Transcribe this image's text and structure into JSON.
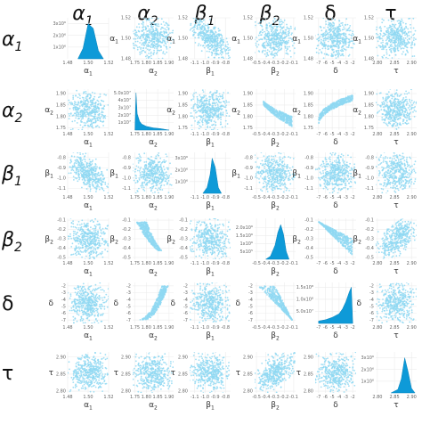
{
  "chart_data": {
    "type": "scatter-matrix",
    "variables": [
      {
        "key": "a1",
        "base": "α",
        "sub": "1",
        "plain": "α₁",
        "range": [
          1.48,
          1.52
        ],
        "ticks": [
          {
            "v": 1.48,
            "l": "1.48"
          },
          {
            "v": 1.5,
            "l": "1.50"
          },
          {
            "v": 1.52,
            "l": "1.52"
          }
        ]
      },
      {
        "key": "a2",
        "base": "α",
        "sub": "2",
        "plain": "α₂",
        "range": [
          1.74,
          1.92
        ],
        "ticks": [
          {
            "v": 1.75,
            "l": "1.75"
          },
          {
            "v": 1.8,
            "l": "1.80"
          },
          {
            "v": 1.85,
            "l": "1.85"
          },
          {
            "v": 1.9,
            "l": "1.90"
          }
        ]
      },
      {
        "key": "b1",
        "base": "β",
        "sub": "1",
        "plain": "β₁",
        "range": [
          -1.15,
          -0.75
        ],
        "ticks": [
          {
            "v": -1.1,
            "l": "-1.1"
          },
          {
            "v": -1.0,
            "l": "-1.0"
          },
          {
            "v": -0.9,
            "l": "-0.9"
          },
          {
            "v": -0.8,
            "l": "-0.8"
          }
        ]
      },
      {
        "key": "b2",
        "base": "β",
        "sub": "2",
        "plain": "β₂",
        "range": [
          -0.52,
          -0.08
        ],
        "ticks": [
          {
            "v": -0.5,
            "l": "-0.5"
          },
          {
            "v": -0.4,
            "l": "-0.4"
          },
          {
            "v": -0.3,
            "l": "-0.3"
          },
          {
            "v": -0.2,
            "l": "-0.2"
          },
          {
            "v": -0.1,
            "l": "-0.1"
          }
        ]
      },
      {
        "key": "d",
        "base": "δ",
        "sub": "",
        "plain": "δ",
        "range": [
          -7.5,
          -1.5
        ],
        "ticks": [
          {
            "v": -7,
            "l": "-7"
          },
          {
            "v": -6,
            "l": "-6"
          },
          {
            "v": -5,
            "l": "-5"
          },
          {
            "v": -4,
            "l": "-4"
          },
          {
            "v": -3,
            "l": "-3"
          },
          {
            "v": -2,
            "l": "-2"
          }
        ]
      },
      {
        "key": "t",
        "base": "τ",
        "sub": "",
        "plain": "τ",
        "range": [
          2.795,
          2.915
        ],
        "ticks": [
          {
            "v": 2.8,
            "l": "2.80"
          },
          {
            "v": 2.85,
            "l": "2.85"
          },
          {
            "v": 2.9,
            "l": "2.90"
          }
        ]
      }
    ],
    "diagonal": [
      {
        "type": "density",
        "ylim": [
          0,
          3500000.0
        ],
        "yticks": [
          {
            "v": 1000000.0,
            "l": "1x10⁶"
          },
          {
            "v": 2000000.0,
            "l": "2x10⁶"
          },
          {
            "v": 3000000.0,
            "l": "3x10⁶"
          }
        ],
        "x": [
          1.49,
          1.495,
          1.5,
          1.505,
          1.51,
          1.515
        ],
        "y": [
          0,
          900000.0,
          3000000.0,
          2600000.0,
          700000.0,
          0
        ]
      },
      {
        "type": "density",
        "ylim": [
          0,
          55000000.0
        ],
        "yticks": [
          {
            "v": 10000000.0,
            "l": "1x10⁷"
          },
          {
            "v": 20000000.0,
            "l": "2x10⁷"
          },
          {
            "v": 30000000.0,
            "l": "3x10⁷"
          },
          {
            "v": 40000000.0,
            "l": "4x10⁷"
          },
          {
            "v": 50000000.0,
            "l": "5.0x10⁷"
          }
        ],
        "x": [
          1.75,
          1.755,
          1.76,
          1.77,
          1.78,
          1.8,
          1.83,
          1.86,
          1.9
        ],
        "y": [
          0,
          50000000.0,
          22000000.0,
          12000000.0,
          8000000.0,
          5000000.0,
          3000000.0,
          2000000.0,
          0
        ]
      },
      {
        "type": "density",
        "ylim": [
          0,
          3500000.0
        ],
        "yticks": [
          {
            "v": 1000000.0,
            "l": "1x10⁶"
          },
          {
            "v": 2000000.0,
            "l": "2x10⁶"
          },
          {
            "v": 3000000.0,
            "l": "3x10⁶"
          }
        ],
        "x": [
          -1.02,
          -0.98,
          -0.95,
          -0.93,
          -0.9,
          -0.87,
          -0.84
        ],
        "y": [
          0,
          500000.0,
          1600000.0,
          3000000.0,
          2200000.0,
          500000.0,
          0
        ]
      },
      {
        "type": "density",
        "ylim": [
          0,
          2600000.0
        ],
        "yticks": [
          {
            "v": 500000.0,
            "l": "5x10⁵"
          },
          {
            "v": 1000000.0,
            "l": "1x10⁶"
          },
          {
            "v": 1500000.0,
            "l": "1.5x10⁶"
          },
          {
            "v": 2000000.0,
            "l": "2.0x10⁶"
          }
        ],
        "x": [
          -0.4,
          -0.35,
          -0.3,
          -0.27,
          -0.24,
          -0.21,
          -0.18,
          -0.15
        ],
        "y": [
          0,
          200000.0,
          900000.0,
          1700000.0,
          2200000.0,
          1600000.0,
          500000.0,
          0
        ]
      },
      {
        "type": "density",
        "ylim": [
          0,
          170000000.0
        ],
        "yticks": [
          {
            "v": 50000000.0,
            "l": "5.0x10⁷"
          },
          {
            "v": 100000000.0,
            "l": "1.0x10⁸"
          },
          {
            "v": 150000000.0,
            "l": "1.5x10⁸"
          }
        ],
        "x": [
          -7,
          -6,
          -5,
          -4,
          -3.5,
          -3,
          -2.5,
          -2.2,
          -2
        ],
        "y": [
          10000000.0,
          15000000.0,
          25000000.0,
          40000000.0,
          60000000.0,
          90000000.0,
          130000000.0,
          150000000.0,
          0
        ]
      },
      {
        "type": "density",
        "ylim": [
          0,
          3500000.0
        ],
        "yticks": [
          {
            "v": 1000000.0,
            "l": "1x10⁶"
          },
          {
            "v": 2000000.0,
            "l": "2x10⁶"
          },
          {
            "v": 3000000.0,
            "l": "3x10⁶"
          }
        ],
        "x": [
          2.84,
          2.86,
          2.87,
          2.88,
          2.89,
          2.9,
          2.91
        ],
        "y": [
          0,
          300000.0,
          1200000.0,
          3000000.0,
          1800000.0,
          400000.0,
          0
        ]
      }
    ],
    "scatter": [
      {
        "row": 0,
        "col": 1,
        "points": [
          [
            1.78,
            1.49
          ],
          [
            1.82,
            1.505
          ],
          [
            1.86,
            1.51
          ],
          [
            1.8,
            1.495
          ],
          [
            1.88,
            1.5
          ],
          [
            1.84,
            1.49
          ],
          [
            1.76,
            1.505
          ],
          [
            1.9,
            1.495
          ]
        ]
      },
      {
        "row": 0,
        "col": 2,
        "points": [
          [
            -1.05,
            1.51
          ],
          [
            -0.95,
            1.5
          ],
          [
            -0.9,
            1.49
          ],
          [
            -1.0,
            1.505
          ],
          [
            -0.85,
            1.495
          ],
          [
            -1.1,
            1.515
          ]
        ]
      },
      {
        "row": 0,
        "col": 3,
        "points": [
          [
            -0.45,
            1.5
          ],
          [
            -0.3,
            1.49
          ],
          [
            -0.2,
            1.51
          ],
          [
            -0.35,
            1.505
          ],
          [
            -0.25,
            1.495
          ]
        ]
      },
      {
        "row": 0,
        "col": 4,
        "points": [
          [
            -6,
            1.49
          ],
          [
            -5,
            1.51
          ],
          [
            -4,
            1.5
          ],
          [
            -3,
            1.495
          ],
          [
            -2,
            1.505
          ]
        ]
      },
      {
        "row": 0,
        "col": 5,
        "points": [
          [
            2.82,
            1.5
          ],
          [
            2.86,
            1.49
          ],
          [
            2.9,
            1.51
          ],
          [
            2.85,
            1.505
          ]
        ]
      },
      {
        "row": 1,
        "col": 3,
        "points": [
          [
            -0.5,
            1.88
          ],
          [
            -0.4,
            1.84
          ],
          [
            -0.3,
            1.8
          ],
          [
            -0.2,
            1.77
          ],
          [
            -0.1,
            1.76
          ]
        ]
      },
      {
        "row": 1,
        "col": 4,
        "points": [
          [
            -7,
            1.75
          ],
          [
            -6,
            1.76
          ],
          [
            -5,
            1.78
          ],
          [
            -4,
            1.82
          ],
          [
            -3,
            1.86
          ],
          [
            -2,
            1.89
          ]
        ]
      }
    ]
  }
}
